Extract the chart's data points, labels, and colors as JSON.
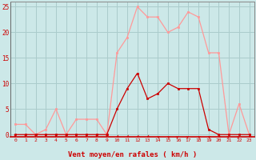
{
  "hours": [
    0,
    1,
    2,
    3,
    4,
    5,
    6,
    7,
    8,
    9,
    10,
    11,
    12,
    13,
    14,
    15,
    16,
    17,
    18,
    19,
    20,
    21,
    22,
    23
  ],
  "wind_avg": [
    0,
    0,
    0,
    0,
    0,
    0,
    0,
    0,
    0,
    0,
    5,
    9,
    12,
    7,
    8,
    10,
    9,
    9,
    9,
    1,
    0,
    0,
    0,
    0
  ],
  "wind_gust": [
    2,
    2,
    0,
    1,
    5,
    0,
    3,
    3,
    3,
    0,
    16,
    19,
    25,
    23,
    23,
    20,
    21,
    24,
    23,
    16,
    16,
    0,
    6,
    0
  ],
  "arrow_dirs": [
    180,
    180,
    180,
    180,
    180,
    180,
    180,
    180,
    180,
    180,
    225,
    225,
    225,
    225,
    315,
    315,
    45,
    45,
    315,
    315,
    225,
    45,
    45,
    225
  ],
  "bg_color": "#cce8e8",
  "grid_color": "#aacccc",
  "line_avg_color": "#cc0000",
  "line_gust_color": "#ff9999",
  "xlabel": "Vent moyen/en rafales ( km/h )",
  "xlabel_color": "#cc0000",
  "ylabel_color": "#cc0000",
  "yticks": [
    0,
    5,
    10,
    15,
    20,
    25
  ],
  "ylim": [
    -0.5,
    26
  ],
  "xlim": [
    -0.5,
    23.5
  ]
}
